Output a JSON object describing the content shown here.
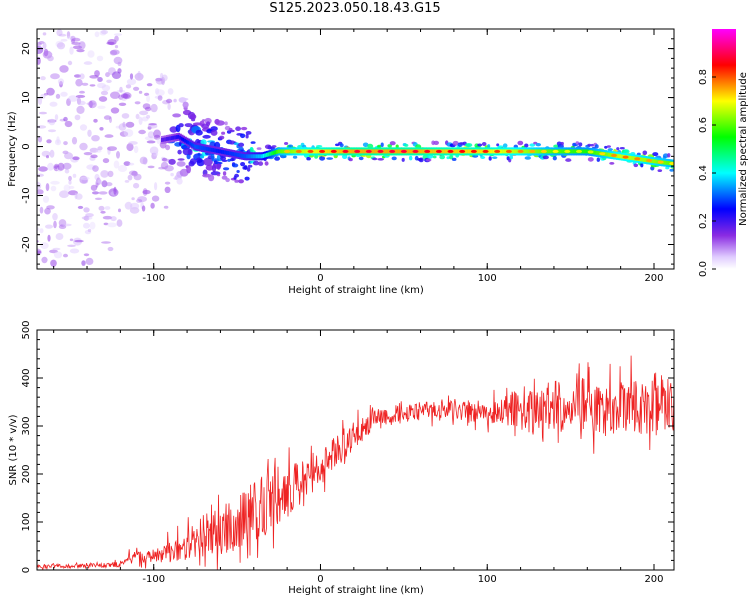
{
  "figure_title": "S125.2023.050.18.43.G15",
  "colors": {
    "spectrogram_colormap": [
      "#ffffff",
      "#e0ccff",
      "#8a2be2",
      "#0000ff",
      "#00ffff",
      "#00ff00",
      "#ffff00",
      "#ff0000",
      "#ff00ff"
    ],
    "snr_line": "#ee2222",
    "axes": "#000000"
  },
  "chart_data": [
    {
      "type": "heatmap",
      "title": "",
      "xlabel": "Height of straight line (km)",
      "ylabel": "Frequency (Hz)",
      "xlim": [
        -170,
        212
      ],
      "ylim": [
        -25,
        24
      ],
      "xticks": [
        -100,
        0,
        100,
        200
      ],
      "yticks": [
        -20,
        -10,
        0,
        10,
        20
      ],
      "colorbar": {
        "label": "Normalized spectral amplitude",
        "range": [
          0,
          1
        ],
        "ticks": [
          "0.0",
          "0.2",
          "0.4",
          "0.6",
          "0.8"
        ]
      },
      "signal_track": {
        "x": [
          -170,
          -130,
          -100,
          -85,
          -75,
          -60,
          -45,
          -35,
          -25,
          -10,
          0,
          20,
          50,
          100,
          140,
          160,
          180,
          200,
          212
        ],
        "center_freq_hz": [
          0,
          0,
          1,
          2,
          0,
          -1,
          -2,
          -2,
          -1,
          -1,
          -1,
          -1,
          -1,
          -1,
          -1,
          -1,
          -2,
          -3,
          -3.5
        ],
        "peak_amplitude": [
          0.1,
          0.15,
          0.2,
          0.3,
          0.4,
          0.35,
          0.4,
          0.5,
          0.8,
          0.9,
          0.95,
          1.0,
          1.0,
          0.95,
          0.8,
          0.75,
          0.9,
          0.85,
          0.8
        ]
      }
    },
    {
      "type": "line",
      "title": "",
      "xlabel": "Height of straight line (km)",
      "ylabel": "SNR (10 * v/v)",
      "xlim": [
        -170,
        212
      ],
      "ylim": [
        0,
        500
      ],
      "xticks": [
        -100,
        0,
        100,
        200
      ],
      "yticks": [
        0,
        100,
        200,
        300,
        400,
        500
      ],
      "series": [
        {
          "x": [
            -170,
            -150,
            -130,
            -120,
            -115,
            -100,
            -90,
            -80,
            -70,
            -60,
            -50,
            -40,
            -30,
            -20,
            -10,
            0,
            10,
            20,
            30,
            40,
            50,
            60,
            70,
            80,
            90,
            100,
            110,
            120,
            130,
            140,
            150,
            160,
            170,
            180,
            190,
            200,
            212
          ],
          "mean": [
            8,
            8,
            10,
            12,
            30,
            25,
            40,
            55,
            70,
            80,
            100,
            120,
            150,
            160,
            190,
            210,
            250,
            280,
            310,
            320,
            325,
            330,
            330,
            335,
            330,
            325,
            330,
            340,
            330,
            345,
            340,
            350,
            330,
            360,
            340,
            345,
            340
          ],
          "spread": [
            4,
            4,
            5,
            6,
            10,
            15,
            25,
            35,
            45,
            50,
            60,
            65,
            70,
            55,
            45,
            35,
            35,
            30,
            25,
            20,
            20,
            20,
            20,
            22,
            25,
            25,
            30,
            50,
            45,
            55,
            55,
            55,
            60,
            70,
            60,
            70,
            50
          ]
        }
      ]
    }
  ]
}
